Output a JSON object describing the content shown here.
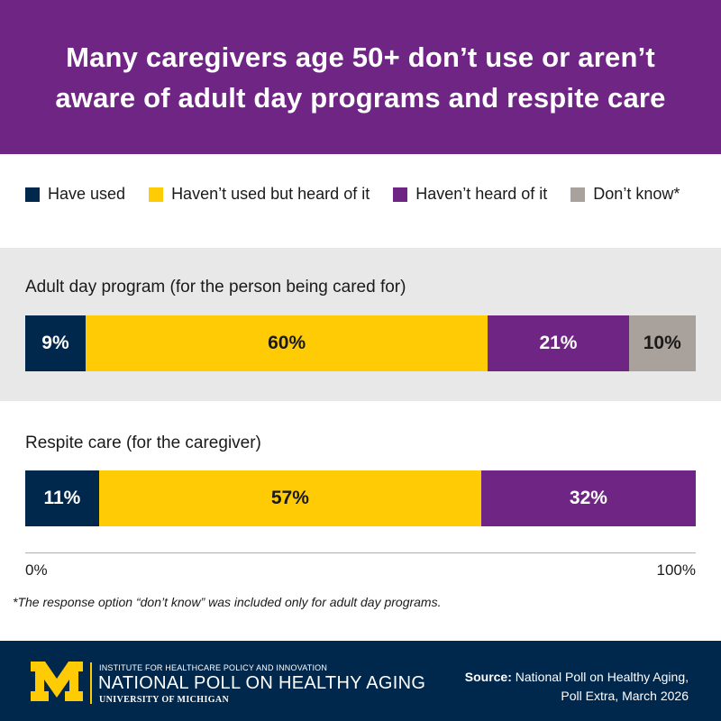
{
  "header": {
    "title": "Many caregivers age 50+ don’t use or aren’t aware of adult day programs and respite care"
  },
  "colors": {
    "header_bg": "#6e2583",
    "have_used": "#00274c",
    "heard_of": "#ffcb05",
    "not_heard": "#6e2583",
    "dont_know": "#a9a19b",
    "footer_bg": "#00274c"
  },
  "chart_data": {
    "type": "bar",
    "orientation": "horizontal",
    "stacked": true,
    "legend_position": "top",
    "categories": [
      "Adult day program (for the person being cared for)",
      "Respite care (for the caregiver)"
    ],
    "series": [
      {
        "name": "Have used",
        "color": "#00274c",
        "values": [
          9,
          11
        ]
      },
      {
        "name": "Haven’t used but heard of it",
        "color": "#ffcb05",
        "values": [
          60,
          57
        ]
      },
      {
        "name": "Haven’t heard of it",
        "color": "#6e2583",
        "values": [
          21,
          32
        ]
      },
      {
        "name": "Don’t know*",
        "color": "#a9a19b",
        "values": [
          10,
          null
        ]
      }
    ],
    "data_labels": [
      [
        "9%",
        "60%",
        "21%",
        "10%"
      ],
      [
        "11%",
        "57%",
        "32%",
        ""
      ]
    ],
    "xlim": [
      0,
      100
    ],
    "x_ticks": [
      "0%",
      "100%"
    ]
  },
  "footnote": "*The response option “don’t know” was included only for adult day programs.",
  "footer": {
    "org_small": "INSTITUTE FOR HEALTHCARE POLICY AND INNOVATION",
    "org_main": "NATIONAL POLL ON HEALTHY AGING",
    "org_univ": "UNIVERSITY OF MICHIGAN",
    "source_label": "Source:",
    "source_line1": "National Poll on Healthy Aging,",
    "source_line2": "Poll Extra, March 2026"
  }
}
